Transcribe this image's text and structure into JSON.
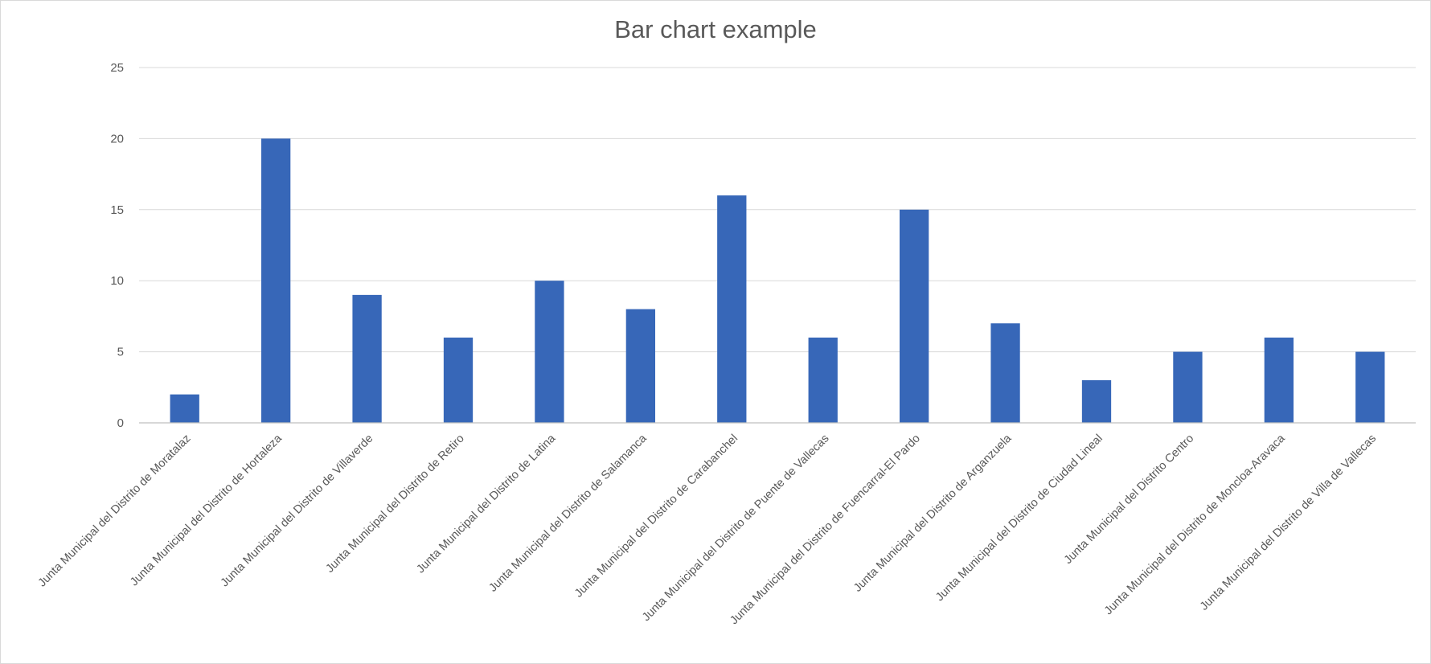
{
  "chart_data": {
    "type": "bar",
    "title": "Bar chart example",
    "xlabel": "",
    "ylabel": "",
    "ylim": [
      0,
      25
    ],
    "yticks": [
      0,
      5,
      10,
      15,
      20,
      25
    ],
    "grid": true,
    "legend": "none",
    "bar_color": "#3767b8",
    "categories": [
      "Junta Municipal del Distrito de Moratalaz",
      "Junta Municipal del Distrito de Hortaleza",
      "Junta Municipal del Distrito de Villaverde",
      "Junta Municipal del Distrito de Retiro",
      "Junta Municipal del Distrito de Latina",
      "Junta Municipal del Distrito de Salamanca",
      "Junta Municipal del Distrito de Carabanchel",
      "Junta Municipal del Distrito de Puente de Vallecas",
      "Junta Municipal del Distrito de Fuencarral-El Pardo",
      "Junta Municipal del Distrito de Arganzuela",
      "Junta Municipal del Distrito de Ciudad Lineal",
      "Junta Municipal del Distrito Centro",
      "Junta Municipal del Distrito de Moncloa-Aravaca",
      "Junta Municipal del Distrito de Villa de Vallecas"
    ],
    "values": [
      2,
      20,
      9,
      6,
      10,
      8,
      16,
      6,
      15,
      7,
      3,
      5,
      6,
      5
    ]
  }
}
